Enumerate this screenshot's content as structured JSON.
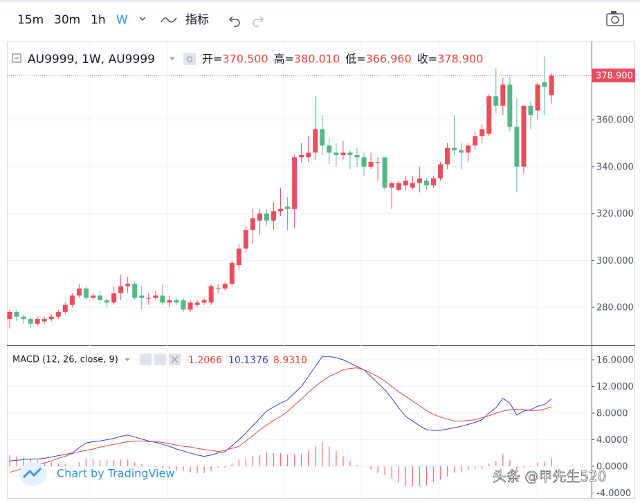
{
  "toolbar": {
    "intervals": [
      "15m",
      "30m",
      "1h",
      "W"
    ],
    "indicators": "指标"
  },
  "chart_data": [
    {
      "type": "candlestick",
      "symbol": "AU9999, 1W, AU9999",
      "ohlc_legend": [
        {
          "name": "开=",
          "text": "370.500"
        },
        {
          "name": "高=",
          "text": "380.010"
        },
        {
          "name": "低=",
          "text": "366.960"
        },
        {
          "name": "收=",
          "text": "378.900"
        }
      ],
      "open": [
        275,
        278,
        276,
        275,
        273,
        274,
        275,
        276,
        278,
        281,
        285,
        288,
        284,
        285,
        283,
        282,
        286,
        289,
        290,
        285,
        284,
        284,
        285,
        282,
        283,
        283,
        279,
        281,
        282,
        282,
        288,
        288,
        290,
        298,
        305,
        313,
        317,
        320,
        317,
        321,
        323,
        322,
        344,
        344,
        346,
        356,
        349,
        346,
        345,
        346,
        345,
        344,
        340,
        342,
        344,
        331,
        330,
        332,
        331,
        333,
        334,
        332,
        335,
        341,
        348,
        347,
        346,
        349,
        353,
        354,
        370,
        366,
        375,
        357,
        340,
        366,
        364,
        376,
        370.5
      ],
      "high": [
        279,
        279,
        277,
        276,
        276,
        276,
        277,
        279,
        282,
        286,
        290,
        289,
        286,
        287,
        284,
        289,
        294,
        293,
        291,
        289,
        286,
        287,
        290,
        285,
        284,
        284,
        283,
        283,
        284,
        290,
        290,
        291,
        300,
        307,
        315,
        322,
        322,
        322,
        325,
        331,
        327,
        345,
        350,
        353,
        370,
        362,
        352,
        350,
        351,
        347,
        348,
        346,
        346,
        344,
        344,
        334,
        334,
        336,
        336,
        340,
        335,
        336,
        342,
        350,
        362,
        350,
        350,
        355,
        358,
        371,
        382,
        378,
        378,
        369,
        366,
        368,
        376,
        387,
        380.01
      ],
      "low": [
        271,
        274,
        273,
        271,
        272,
        273,
        274,
        275,
        277,
        280,
        284,
        283,
        283,
        282,
        280,
        281,
        283,
        286,
        283,
        279,
        281,
        283,
        281,
        280,
        281,
        278,
        278,
        280,
        281,
        281,
        286,
        287,
        289,
        296,
        303,
        307,
        311,
        315,
        313,
        319,
        313,
        314,
        342,
        342,
        343,
        345,
        341,
        340,
        343,
        339,
        340,
        336,
        339,
        334,
        330,
        322,
        329,
        330,
        330,
        329,
        330,
        331,
        334,
        339,
        345,
        339,
        342,
        347,
        350,
        353,
        363,
        362,
        355,
        329,
        337,
        356,
        360,
        362,
        366.96
      ],
      "close": [
        278,
        276,
        275,
        273,
        275,
        275,
        276,
        278,
        281,
        285,
        288,
        284,
        285,
        283,
        282,
        286,
        289,
        290,
        284,
        284,
        284,
        285,
        282,
        283,
        282,
        279,
        282,
        282,
        283,
        289,
        288,
        290,
        299,
        305,
        313,
        318,
        320,
        317,
        321,
        322,
        322,
        344,
        345,
        346,
        356,
        349,
        346,
        345,
        346,
        345,
        344,
        340,
        342,
        342,
        331,
        333,
        333,
        334,
        333,
        335,
        332,
        335,
        341,
        348,
        347,
        346,
        349,
        353,
        356,
        370,
        366,
        375,
        357,
        340,
        366,
        362,
        375,
        374,
        378.9
      ],
      "up_color": "#ea4d5e",
      "down_color": "#53b987",
      "last_price": {
        "value": 378.9,
        "label": "378.900"
      },
      "ylim": [
        263.8,
        393.1
      ],
      "yticks": [
        {
          "value": 280,
          "label": "280.000"
        },
        {
          "value": 300,
          "label": "300.000"
        },
        {
          "value": 320,
          "label": "320.000"
        },
        {
          "value": 340,
          "label": "340.000"
        },
        {
          "value": 360,
          "label": "360.000"
        }
      ],
      "grid": true
    },
    {
      "type": "macd",
      "title": "MACD (12, 26, close, 9)",
      "legend_values": [
        "1.2066",
        "10.1376",
        "8.9310"
      ],
      "series": [
        {
          "color": "#f2737f",
          "style": "histogram",
          "values": [
            1.7,
            1.5,
            1.3,
            1.1,
            0.9,
            0.7,
            0.6,
            0.4,
            0.3,
            0.1,
            0.6,
            1.1,
            1.1,
            0.9,
            0.9,
            0.9,
            1.0,
            1.0,
            0.6,
            0.3,
            0.1,
            -0.1,
            -0.3,
            -0.4,
            -0.6,
            -0.7,
            -0.9,
            -1.0,
            -1.0,
            -0.7,
            -0.2,
            -0.2,
            0.4,
            1.0,
            1.2,
            1.5,
            1.7,
            2.1,
            2.0,
            2.0,
            1.8,
            1.8,
            1.9,
            2.4,
            3.0,
            3.7,
            3.0,
            2.3,
            1.5,
            0.8,
            0.2,
            0.0,
            -0.5,
            -1.0,
            -1.3,
            -1.8,
            -2.4,
            -3.0,
            -3.0,
            -3.0,
            -2.9,
            -2.4,
            -2.0,
            -1.5,
            -1.0,
            -0.8,
            -0.6,
            -0.4,
            -0.3,
            0.4,
            0.8,
            1.9,
            1.0,
            -0.9,
            -0.2,
            0.1,
            0.6,
            0.7,
            1.2066
          ]
        },
        {
          "color": "#3a3ad6",
          "style": "line",
          "values": [
            0.8,
            0.9,
            1.0,
            1.1,
            1.1,
            1.2,
            1.4,
            1.6,
            1.8,
            2.0,
            2.8,
            3.5,
            3.7,
            3.8,
            4.0,
            4.2,
            4.5,
            4.7,
            4.4,
            4.1,
            3.8,
            3.6,
            3.3,
            3.0,
            2.6,
            2.3,
            2.0,
            1.7,
            1.5,
            1.7,
            2.0,
            2.2,
            3.1,
            4.0,
            5.0,
            6.1,
            7.2,
            8.3,
            8.9,
            9.5,
            10.0,
            11.0,
            12.0,
            13.5,
            15.0,
            16.5,
            16.5,
            16.3,
            16.0,
            15.5,
            15.0,
            14.5,
            13.5,
            12.5,
            11.5,
            10.2,
            8.8,
            7.5,
            6.8,
            6.1,
            5.5,
            5.4,
            5.4,
            5.6,
            5.8,
            6.0,
            6.3,
            6.6,
            7.0,
            8.0,
            8.8,
            10.2,
            9.5,
            7.7,
            8.3,
            8.5,
            9.0,
            9.3,
            10.1376
          ]
        },
        {
          "color": "#e8443a",
          "style": "line",
          "values": [
            -0.9,
            -0.6,
            -0.3,
            0.0,
            0.2,
            0.5,
            0.8,
            1.2,
            1.5,
            1.9,
            2.2,
            2.4,
            2.6,
            2.9,
            3.1,
            3.3,
            3.5,
            3.7,
            3.8,
            3.8,
            3.7,
            3.7,
            3.6,
            3.4,
            3.2,
            3.0,
            2.9,
            2.7,
            2.5,
            2.4,
            2.2,
            2.4,
            2.7,
            3.0,
            3.8,
            4.6,
            5.5,
            6.2,
            6.9,
            7.5,
            8.2,
            9.2,
            10.1,
            11.1,
            12.0,
            12.8,
            13.5,
            14.0,
            14.5,
            14.7,
            14.8,
            14.5,
            14.0,
            13.5,
            12.8,
            12.0,
            11.2,
            10.5,
            9.8,
            9.1,
            8.4,
            7.8,
            7.4,
            7.1,
            6.8,
            6.8,
            6.9,
            7.0,
            7.3,
            7.6,
            8.0,
            8.3,
            8.5,
            8.6,
            8.5,
            8.4,
            8.4,
            8.6,
            8.931
          ]
        }
      ],
      "ylim": [
        -4.78,
        18.08
      ],
      "yticks": [
        {
          "value": -4,
          "label": "-4.0000"
        },
        {
          "value": 0,
          "label": "0.0000"
        },
        {
          "value": 4,
          "label": "4.0000"
        },
        {
          "value": 8,
          "label": "8.0000"
        },
        {
          "value": 12,
          "label": "12.0000"
        },
        {
          "value": 16,
          "label": "16.0000"
        }
      ],
      "grid": true
    }
  ],
  "watermark": "Chart by TradingView",
  "credit": "头条 @甲先生520"
}
